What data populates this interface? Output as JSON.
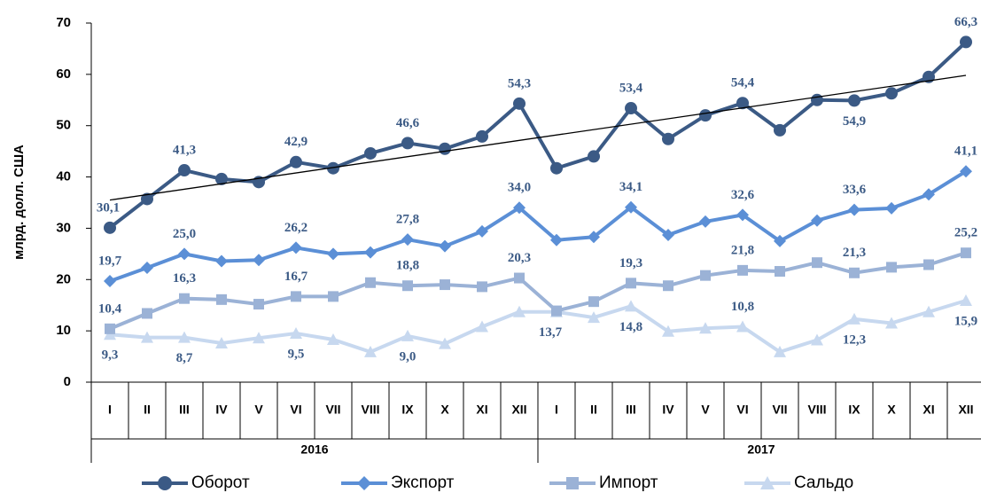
{
  "chart_data": {
    "type": "line",
    "y_label": "млрд. долл. США",
    "categories": [
      "I",
      "II",
      "III",
      "IV",
      "V",
      "VI",
      "VII",
      "VIII",
      "IX",
      "X",
      "XI",
      "XII",
      "I",
      "II",
      "III",
      "IV",
      "V",
      "VI",
      "VII",
      "VIII",
      "IX",
      "X",
      "XI",
      "XII"
    ],
    "groups": [
      "2016",
      "2017"
    ],
    "ylim": [
      0,
      70
    ],
    "yticks": [
      0,
      10,
      20,
      30,
      40,
      50,
      60,
      70
    ],
    "trend": [
      35.5,
      59.8
    ],
    "series": [
      {
        "name": "Оборот",
        "color": "#3b5a85",
        "marker": "circle",
        "values": [
          30.1,
          35.7,
          41.3,
          39.6,
          39.0,
          42.9,
          41.7,
          44.6,
          46.6,
          45.5,
          47.9,
          54.3,
          41.7,
          44.0,
          53.4,
          47.4,
          52.0,
          54.4,
          49.1,
          55.0,
          54.9,
          56.3,
          59.5,
          66.3
        ],
        "value_labels": [
          "30,1",
          null,
          "41,3",
          null,
          null,
          "42,9",
          null,
          null,
          "46,6",
          null,
          null,
          "54,3",
          null,
          null,
          "53,4",
          null,
          null,
          "54,4",
          null,
          null,
          "54,9",
          null,
          null,
          "66,3"
        ]
      },
      {
        "name": "Экспорт",
        "color": "#5b8fd6",
        "marker": "diamond",
        "values": [
          19.7,
          22.3,
          25.0,
          23.6,
          23.8,
          26.2,
          25.0,
          25.3,
          27.8,
          26.5,
          29.4,
          34.0,
          27.7,
          28.3,
          34.1,
          28.7,
          31.3,
          32.6,
          27.5,
          31.5,
          33.6,
          33.9,
          36.6,
          41.1
        ],
        "value_labels": [
          "19,7",
          null,
          "25,0",
          null,
          null,
          "26,2",
          null,
          null,
          "27,8",
          null,
          null,
          "34,0",
          null,
          null,
          "34,1",
          null,
          null,
          "32,6",
          null,
          null,
          "33,6",
          null,
          null,
          "41,1"
        ]
      },
      {
        "name": "Импорт",
        "color": "#9bb2d6",
        "marker": "square",
        "values": [
          10.4,
          13.4,
          16.3,
          16.1,
          15.2,
          16.7,
          16.7,
          19.4,
          18.8,
          19.0,
          18.6,
          20.3,
          13.9,
          15.7,
          19.3,
          18.8,
          20.8,
          21.8,
          21.6,
          23.3,
          21.3,
          22.4,
          22.9,
          25.2
        ],
        "value_labels": [
          "10,4",
          null,
          "16,3",
          null,
          null,
          "16,7",
          null,
          null,
          "18,8",
          null,
          null,
          "20,3",
          null,
          null,
          "19,3",
          null,
          null,
          "21,8",
          null,
          null,
          "21,3",
          null,
          null,
          "25,2"
        ]
      },
      {
        "name": "Сальдо",
        "color": "#c7d8ef",
        "marker": "triangle",
        "values": [
          9.3,
          8.7,
          8.7,
          7.6,
          8.6,
          9.5,
          8.3,
          5.9,
          9.0,
          7.5,
          10.8,
          13.7,
          13.7,
          12.6,
          14.8,
          9.9,
          10.5,
          10.8,
          5.9,
          8.2,
          12.3,
          11.5,
          13.7,
          15.9
        ],
        "value_labels": [
          "9,3",
          null,
          "8,7",
          null,
          null,
          "9,5",
          null,
          null,
          "9,0",
          null,
          null,
          "13,7",
          null,
          null,
          "14,8",
          null,
          null,
          "10,8",
          null,
          null,
          "12,3",
          null,
          null,
          "15,9"
        ]
      }
    ]
  }
}
